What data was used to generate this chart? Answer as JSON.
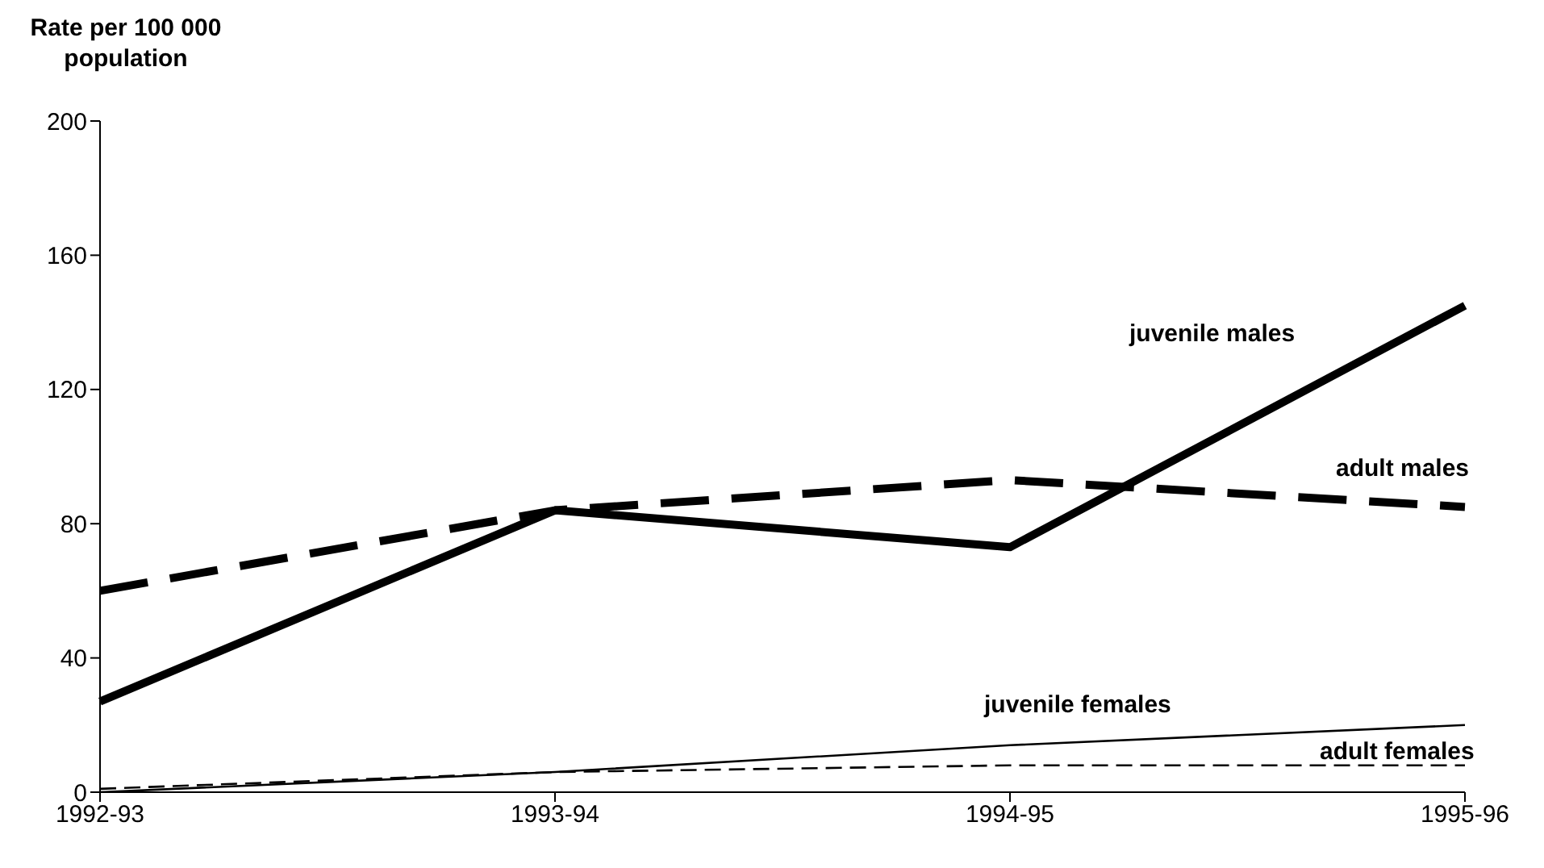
{
  "chart_data": {
    "type": "line",
    "ylabel": "Rate per 100 000 population",
    "categories": [
      "1992-93",
      "1993-94",
      "1994-95",
      "1995-96"
    ],
    "ylim": [
      0,
      200
    ],
    "yticks": [
      0,
      40,
      80,
      120,
      160,
      200
    ],
    "grid": false,
    "legend": false,
    "marker": "none",
    "series": [
      {
        "name": "juvenile males",
        "color": "#000000",
        "line_style": "solid",
        "values": [
          27,
          84,
          73,
          145
        ]
      },
      {
        "name": "adult males",
        "color": "#000000",
        "line_style": "dashed",
        "values": [
          60,
          84,
          93,
          85
        ]
      },
      {
        "name": "juvenile females",
        "color": "#000000",
        "line_style": "solid",
        "values": [
          0,
          6,
          14,
          20
        ]
      },
      {
        "name": "adult females",
        "color": "#000000",
        "line_style": "dashed",
        "values": [
          1,
          6,
          8,
          8
        ]
      }
    ]
  }
}
